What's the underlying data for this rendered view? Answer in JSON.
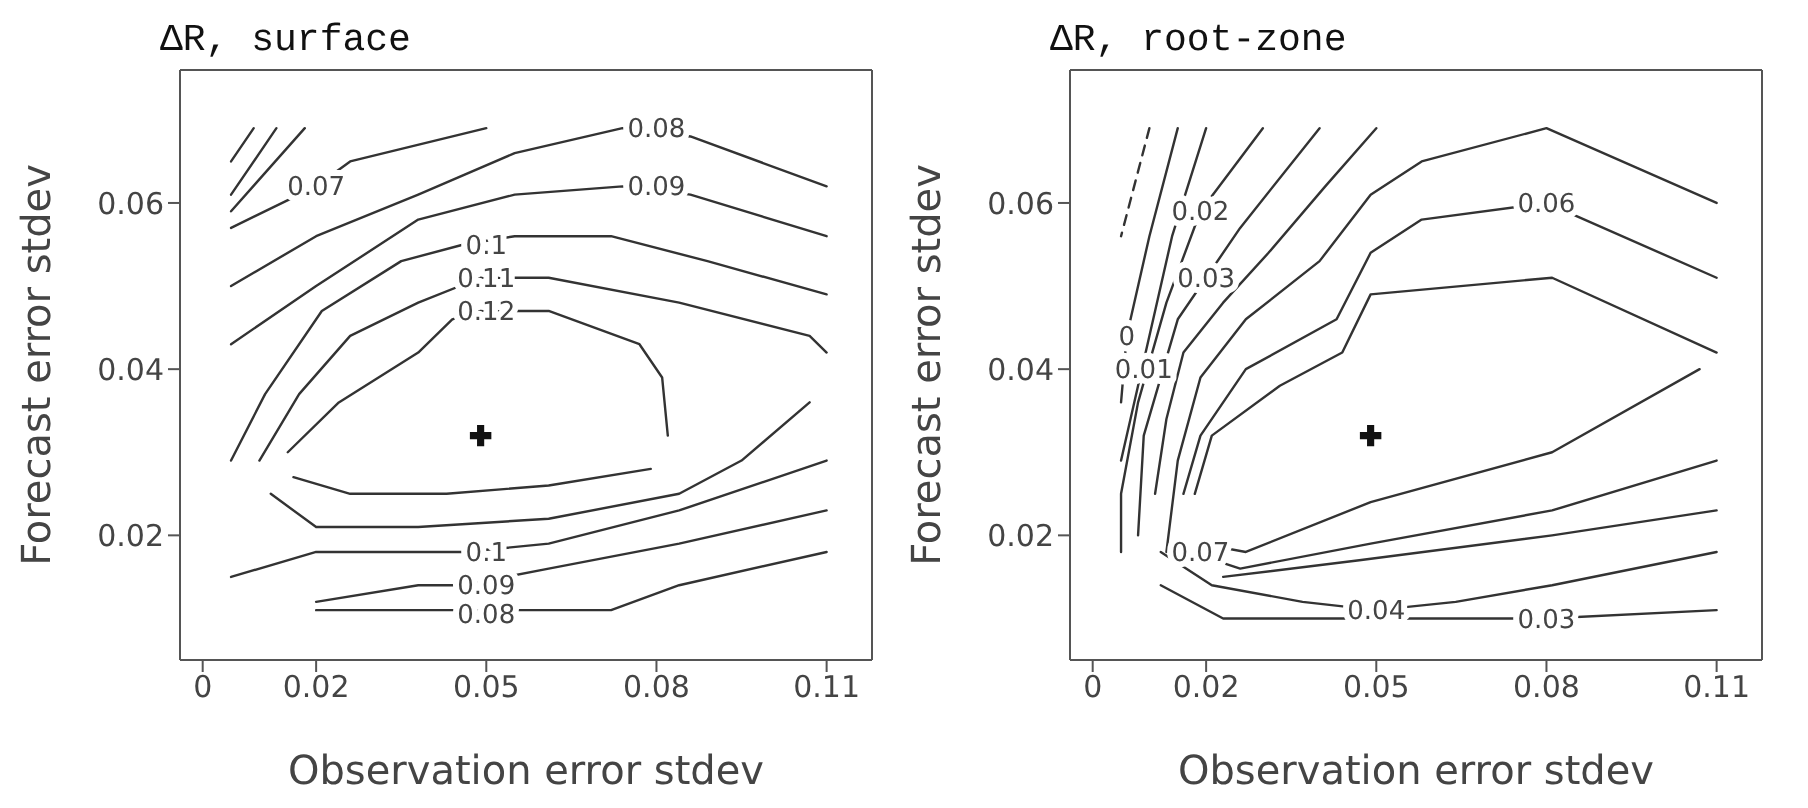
{
  "chart_data": [
    {
      "type": "line",
      "title": "ΔR, surface",
      "xlabel": "Observation error stdev",
      "ylabel": "Forecast error stdev",
      "xlim": [
        -0.004,
        0.118
      ],
      "ylim": [
        0.005,
        0.076
      ],
      "xticks": [
        0,
        0.02,
        0.05,
        0.08,
        0.11
      ],
      "yticks": [
        0.02,
        0.04,
        0.06
      ],
      "series": [
        {
          "color": "#333333",
          "x": [
            0.005,
            0.009
          ],
          "values": [
            0.065,
            0.069
          ]
        },
        {
          "color": "#333333",
          "x": [
            0.005,
            0.013
          ],
          "values": [
            0.061,
            0.069
          ]
        },
        {
          "color": "#333333",
          "x": [
            0.005,
            0.018
          ],
          "values": [
            0.059,
            0.069
          ]
        },
        {
          "color": "#333333",
          "x": [
            0.005,
            0.02,
            0.026,
            0.05
          ],
          "values": [
            0.057,
            0.062,
            0.065,
            0.069
          ]
        },
        {
          "color": "#333333",
          "x": [
            0.005,
            0.02,
            0.038,
            0.055,
            0.074,
            0.086,
            0.11
          ],
          "values": [
            0.05,
            0.056,
            0.061,
            0.066,
            0.069,
            0.068,
            0.062
          ]
        },
        {
          "color": "#333333",
          "x": [
            0.005,
            0.02,
            0.038,
            0.055,
            0.074,
            0.086,
            0.11
          ],
          "values": [
            0.043,
            0.05,
            0.058,
            0.061,
            0.062,
            0.061,
            0.056
          ]
        },
        {
          "color": "#333333",
          "x": [
            0.005,
            0.011,
            0.021,
            0.035,
            0.046,
            0.055,
            0.072,
            0.089,
            0.11
          ],
          "values": [
            0.029,
            0.037,
            0.047,
            0.053,
            0.055,
            0.056,
            0.056,
            0.053,
            0.049
          ]
        },
        {
          "color": "#333333",
          "x": [
            0.01,
            0.017,
            0.026,
            0.038,
            0.049,
            0.061,
            0.084,
            0.107,
            0.11
          ],
          "values": [
            0.029,
            0.037,
            0.044,
            0.048,
            0.051,
            0.051,
            0.048,
            0.044,
            0.042
          ]
        },
        {
          "color": "#333333",
          "x": [
            0.012,
            0.02,
            0.038,
            0.061,
            0.084,
            0.095,
            0.107
          ],
          "values": [
            0.025,
            0.021,
            0.021,
            0.022,
            0.025,
            0.029,
            0.036
          ]
        },
        {
          "color": "#333333",
          "x": [
            0.015,
            0.024,
            0.038,
            0.044,
            0.049,
            0.061,
            0.077,
            0.081,
            0.082
          ],
          "values": [
            0.03,
            0.036,
            0.042,
            0.046,
            0.047,
            0.047,
            0.043,
            0.039,
            0.032
          ]
        },
        {
          "color": "#333333",
          "x": [
            0.016,
            0.026,
            0.043,
            0.061,
            0.079
          ],
          "values": [
            0.027,
            0.025,
            0.025,
            0.026,
            0.028
          ]
        },
        {
          "color": "#333333",
          "x": [
            0.005,
            0.02,
            0.038,
            0.046,
            0.061,
            0.084,
            0.11
          ],
          "values": [
            0.015,
            0.018,
            0.018,
            0.018,
            0.019,
            0.023,
            0.029
          ]
        },
        {
          "color": "#333333",
          "x": [
            0.02,
            0.038,
            0.046,
            0.061,
            0.084,
            0.11
          ],
          "values": [
            0.012,
            0.014,
            0.014,
            0.016,
            0.019,
            0.023
          ]
        },
        {
          "color": "#333333",
          "x": [
            0.02,
            0.046,
            0.061,
            0.072,
            0.084,
            0.11
          ],
          "values": [
            0.011,
            0.011,
            0.011,
            0.011,
            0.014,
            0.018
          ]
        },
        {
          "type": "scatter",
          "marker": "cross",
          "color": "#111111",
          "x": [
            0.049
          ],
          "values": [
            0.032
          ]
        }
      ],
      "annotations": [
        {
          "text": "0.07",
          "x": 0.02,
          "y": 0.062
        },
        {
          "text": "0.08",
          "x": 0.08,
          "y": 0.069
        },
        {
          "text": "0.09",
          "x": 0.08,
          "y": 0.062
        },
        {
          "text": "0.1",
          "x": 0.05,
          "y": 0.055
        },
        {
          "text": "0.11",
          "x": 0.05,
          "y": 0.051
        },
        {
          "text": "0.12",
          "x": 0.05,
          "y": 0.047
        },
        {
          "text": "0.1",
          "x": 0.05,
          "y": 0.018
        },
        {
          "text": "0.09",
          "x": 0.05,
          "y": 0.014
        },
        {
          "text": "0.08",
          "x": 0.05,
          "y": 0.0105
        }
      ]
    },
    {
      "type": "line",
      "title": "ΔR, root-zone",
      "xlabel": "Observation error stdev",
      "ylabel": "Forecast error stdev",
      "xlim": [
        -0.004,
        0.118
      ],
      "ylim": [
        0.005,
        0.076
      ],
      "xticks": [
        0,
        0.02,
        0.05,
        0.08,
        0.11
      ],
      "yticks": [
        0.02,
        0.04,
        0.06
      ],
      "series": [
        {
          "color": "#333333",
          "line_style": "dashed",
          "x": [
            0.01,
            0.005
          ],
          "values": [
            0.069,
            0.056
          ]
        },
        {
          "color": "#333333",
          "x": [
            0.015,
            0.01,
            0.006,
            0.005
          ],
          "values": [
            0.069,
            0.056,
            0.044,
            0.036
          ]
        },
        {
          "color": "#333333",
          "x": [
            0.02,
            0.014,
            0.011,
            0.005
          ],
          "values": [
            0.069,
            0.056,
            0.047,
            0.029
          ]
        },
        {
          "color": "#333333",
          "x": [
            0.03,
            0.019,
            0.013,
            0.008,
            0.005,
            0.005
          ],
          "values": [
            0.069,
            0.059,
            0.048,
            0.036,
            0.025,
            0.018
          ]
        },
        {
          "color": "#333333",
          "x": [
            0.04,
            0.026,
            0.015,
            0.009,
            0.008
          ],
          "values": [
            0.069,
            0.057,
            0.046,
            0.032,
            0.02
          ]
        },
        {
          "color": "#333333",
          "x": [
            0.012,
            0.023,
            0.058,
            0.08,
            0.11
          ],
          "values": [
            0.014,
            0.01,
            0.01,
            0.01,
            0.011
          ]
        },
        {
          "color": "#333333",
          "x": [
            0.05,
            0.041,
            0.031,
            0.023,
            0.016,
            0.013,
            0.011
          ],
          "values": [
            0.069,
            0.062,
            0.054,
            0.048,
            0.042,
            0.034,
            0.025
          ]
        },
        {
          "color": "#333333",
          "x": [
            0.012,
            0.021,
            0.037,
            0.05,
            0.064,
            0.081,
            0.11
          ],
          "values": [
            0.018,
            0.014,
            0.012,
            0.011,
            0.012,
            0.014,
            0.018
          ]
        },
        {
          "color": "#333333",
          "x": [
            0.11,
            0.08,
            0.058,
            0.049,
            0.04,
            0.027,
            0.019,
            0.015,
            0.013
          ],
          "values": [
            0.06,
            0.069,
            0.065,
            0.061,
            0.053,
            0.046,
            0.039,
            0.029,
            0.018
          ]
        },
        {
          "color": "#333333",
          "x": [
            0.023,
            0.047,
            0.081,
            0.11
          ],
          "values": [
            0.015,
            0.017,
            0.02,
            0.023
          ]
        },
        {
          "color": "#333333",
          "x": [
            0.11,
            0.08,
            0.058,
            0.049,
            0.043,
            0.027,
            0.019,
            0.016
          ],
          "values": [
            0.051,
            0.06,
            0.058,
            0.054,
            0.046,
            0.04,
            0.032,
            0.025
          ]
        },
        {
          "color": "#333333",
          "x": [
            0.017,
            0.026,
            0.049,
            0.081,
            0.11
          ],
          "values": [
            0.018,
            0.016,
            0.019,
            0.023,
            0.029
          ]
        },
        {
          "color": "#333333",
          "x": [
            0.11,
            0.081,
            0.049,
            0.044,
            0.033,
            0.021,
            0.018
          ],
          "values": [
            0.042,
            0.051,
            0.049,
            0.042,
            0.038,
            0.032,
            0.025
          ]
        },
        {
          "color": "#333333",
          "x": [
            0.019,
            0.027,
            0.049,
            0.081,
            0.107
          ],
          "values": [
            0.019,
            0.018,
            0.024,
            0.03,
            0.04
          ]
        },
        {
          "type": "scatter",
          "marker": "cross",
          "color": "#111111",
          "x": [
            0.049
          ],
          "values": [
            0.032
          ]
        }
      ],
      "annotations": [
        {
          "text": "0",
          "x": 0.006,
          "y": 0.044
        },
        {
          "text": "0.01",
          "x": 0.009,
          "y": 0.04
        },
        {
          "text": "0.02",
          "x": 0.019,
          "y": 0.059
        },
        {
          "text": "0.03",
          "x": 0.02,
          "y": 0.051
        },
        {
          "text": "0.06",
          "x": 0.08,
          "y": 0.06
        },
        {
          "text": "0.07",
          "x": 0.019,
          "y": 0.018
        },
        {
          "text": "0.04",
          "x": 0.05,
          "y": 0.011
        },
        {
          "text": "0.03",
          "x": 0.08,
          "y": 0.01
        }
      ]
    }
  ]
}
